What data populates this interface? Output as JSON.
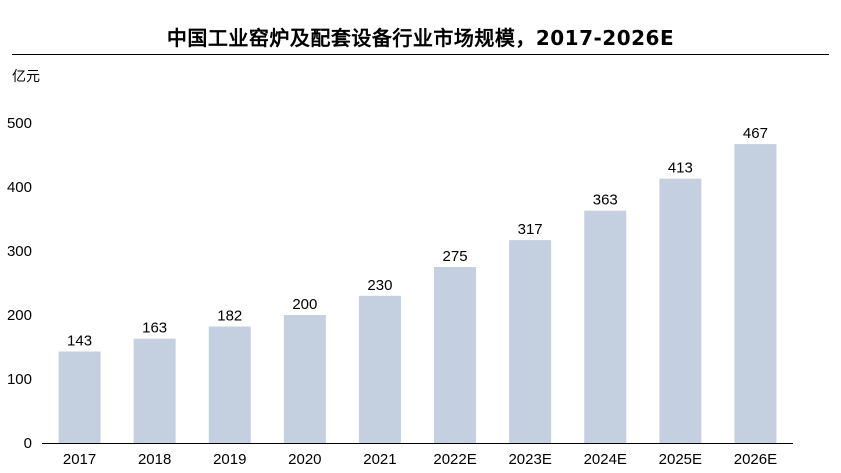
{
  "chart_data": {
    "type": "bar",
    "title": "中国工业窑炉及配套设备行业市场规模，2017-2026E",
    "unit": "亿元",
    "xlabel": "",
    "ylabel": "",
    "categories": [
      "2017",
      "2018",
      "2019",
      "2020",
      "2021",
      "2022E",
      "2023E",
      "2024E",
      "2025E",
      "2026E"
    ],
    "values": [
      143,
      163,
      182,
      200,
      230,
      275,
      317,
      363,
      413,
      467
    ],
    "ylim": [
      0,
      500
    ],
    "yticks": [
      0,
      100,
      200,
      300,
      400,
      500
    ],
    "grid": false,
    "legend": "none",
    "bar_color": "#c4cfe0",
    "data_labels": true
  }
}
